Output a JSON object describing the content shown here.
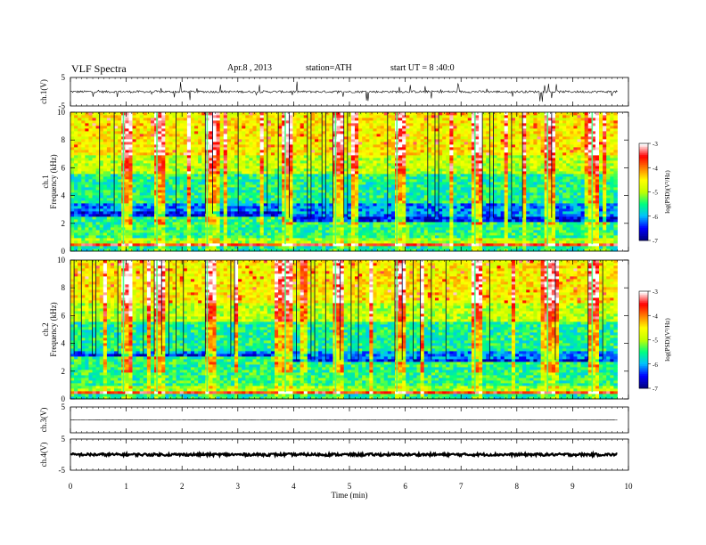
{
  "header": {
    "title": "VLF Spectra",
    "date": "Apr.8 , 2013",
    "station": "station=ATH",
    "start": "start UT =  8 :40:0"
  },
  "chart_data": [
    {
      "type": "line",
      "panel": "ch1-waveform",
      "ylabel": "ch.1(V)",
      "ylim": [
        -5,
        5
      ],
      "yticks": [
        "5",
        "-5"
      ],
      "xlim": [
        0,
        10
      ],
      "data_end_min": 9.8,
      "baseline": 0,
      "typical_amplitude": 0.4,
      "max_spike_amplitude": 3.5
    },
    {
      "type": "heatmap",
      "panel": "ch1-spectrogram",
      "ylabel_top": "ch.1",
      "ylabel": "Frequency (kHz)",
      "ylim": [
        0,
        10
      ],
      "yticks": [
        "0",
        "2",
        "4",
        "6",
        "8",
        "10"
      ],
      "xlim": [
        0,
        10
      ],
      "data_end_min": 9.8,
      "colorbar": {
        "label": "log(PSD)(V²/Hz)",
        "range": [
          -7,
          -3
        ],
        "ticks": [
          "-3",
          "-4",
          "-5",
          "-6",
          "-7"
        ],
        "colors": [
          "#000080",
          "#0000ff",
          "#00c0ff",
          "#00ff80",
          "#c0ff00",
          "#ffff00",
          "#ff8000",
          "#ff0000",
          "#ffffff"
        ]
      },
      "band_boundary_khz_early": 2.5,
      "band_boundary_khz_late": 2.2,
      "transition_min": 3.8,
      "strong_sferics_min": [
        0.95,
        1.55,
        2.45,
        3.85,
        4.75,
        5.85,
        7.25,
        8.55,
        9.35
      ]
    },
    {
      "type": "heatmap",
      "panel": "ch2-spectrogram",
      "ylabel_top": "ch.2",
      "ylabel": "Frequency (kHz)",
      "ylim": [
        0,
        10
      ],
      "yticks": [
        "0",
        "2",
        "4",
        "6",
        "8",
        "10"
      ],
      "xlim": [
        0,
        10
      ],
      "data_end_min": 9.8,
      "colorbar": {
        "label": "log(PSD)(V²/Hz)",
        "range": [
          -7,
          -3
        ],
        "ticks": [
          "-3",
          "-4",
          "-5",
          "-6",
          "-7"
        ],
        "colors": [
          "#000080",
          "#0000ff",
          "#00c0ff",
          "#00ff80",
          "#c0ff00",
          "#ffff00",
          "#ff8000",
          "#ff0000",
          "#ffffff"
        ]
      },
      "band_boundary_khz_early": 3.0,
      "band_boundary_khz_late": 2.6,
      "transition_min": 3.85,
      "strong_sferics_min": [
        0.95,
        1.55,
        2.45,
        3.85,
        4.75,
        5.85,
        7.25,
        8.55,
        9.35
      ]
    },
    {
      "type": "line",
      "panel": "ch3-waveform",
      "ylabel": "ch.3(V)",
      "ylim": [
        -5,
        5
      ],
      "yticks": [
        "5"
      ],
      "xlim": [
        0,
        10
      ],
      "data_end_min": 9.8,
      "baseline": 0,
      "typical_amplitude": 0.05
    },
    {
      "type": "line",
      "panel": "ch4-waveform",
      "ylabel": "ch.4(V)",
      "ylim": [
        -5,
        5
      ],
      "yticks": [
        "5",
        "-5"
      ],
      "xlim": [
        0,
        10
      ],
      "data_end_min": 9.8,
      "baseline": 0,
      "typical_amplitude": 0.4
    }
  ],
  "xaxis": {
    "label": "Time (min)",
    "ticks": [
      "0",
      "1",
      "2",
      "3",
      "4",
      "5",
      "6",
      "7",
      "8",
      "9",
      "10"
    ]
  }
}
